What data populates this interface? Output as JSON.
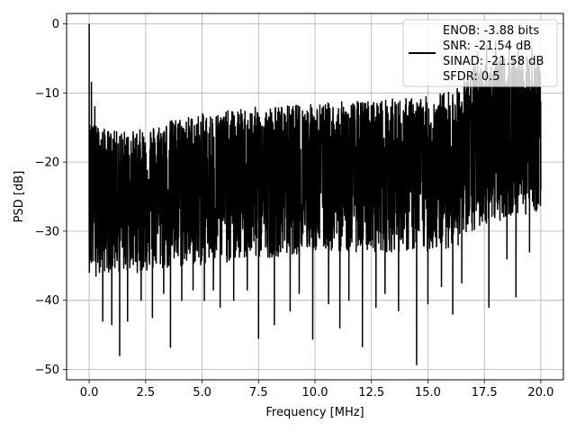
{
  "chart_data": {
    "type": "line",
    "title": "",
    "xlabel": "Frequency [MHz]",
    "ylabel": "PSD [dB]",
    "xlim": [
      -1.0,
      21.0
    ],
    "ylim": [
      -51.5,
      1.5
    ],
    "xticks": [
      0.0,
      2.5,
      5.0,
      7.5,
      10.0,
      12.5,
      15.0,
      17.5,
      20.0
    ],
    "xtick_labels": [
      "0.0",
      "2.5",
      "5.0",
      "7.5",
      "10.0",
      "12.5",
      "15.0",
      "17.5",
      "20.0"
    ],
    "yticks": [
      0,
      -10,
      -20,
      -30,
      -40,
      -50
    ],
    "ytick_labels": [
      "0",
      "−10",
      "−20",
      "−30",
      "−40",
      "−50"
    ],
    "grid": true,
    "legend_position": "top-right",
    "series_color": "#000000",
    "legend": {
      "lines": [
        "ENOB: -3.88 bits",
        "SNR: -21.54 dB",
        "SINAD: -21.58 dB",
        "SFDR: 0.5"
      ]
    },
    "series": [
      {
        "x_start": 0.0,
        "x_end": 20.0,
        "peak": {
          "x": 0.0,
          "y": 0.0
        },
        "band_mean": [
          [
            0.0,
            -22
          ],
          [
            1.0,
            -23
          ],
          [
            2.0,
            -23.5
          ],
          [
            3.0,
            -23
          ],
          [
            4.0,
            -22.5
          ],
          [
            5.0,
            -22.5
          ],
          [
            7.5,
            -22
          ],
          [
            10.0,
            -21.5
          ],
          [
            12.5,
            -21.5
          ],
          [
            15.0,
            -21
          ],
          [
            16.5,
            -20
          ],
          [
            17.0,
            -18
          ],
          [
            18.0,
            -16
          ],
          [
            19.0,
            -15
          ],
          [
            20.0,
            -15
          ]
        ],
        "upper_envelope": [
          [
            0.0,
            -14
          ],
          [
            0.5,
            -15
          ],
          [
            1.0,
            -15.5
          ],
          [
            2.0,
            -15.5
          ],
          [
            3.0,
            -14.5
          ],
          [
            4.0,
            -13.5
          ],
          [
            5.0,
            -13
          ],
          [
            7.5,
            -12
          ],
          [
            10.0,
            -11.5
          ],
          [
            12.5,
            -11
          ],
          [
            15.0,
            -10.5
          ],
          [
            16.5,
            -9
          ],
          [
            17.0,
            -6
          ],
          [
            18.0,
            -5
          ],
          [
            19.0,
            -4.5
          ],
          [
            20.0,
            -5
          ]
        ],
        "lower_envelope": [
          [
            0.0,
            -36
          ],
          [
            1.0,
            -36
          ],
          [
            2.5,
            -36
          ],
          [
            5.0,
            -35
          ],
          [
            7.5,
            -34
          ],
          [
            10.0,
            -33
          ],
          [
            12.5,
            -33
          ],
          [
            15.0,
            -33
          ],
          [
            16.5,
            -32
          ],
          [
            17.5,
            -29
          ],
          [
            20.0,
            -27
          ]
        ],
        "dips": [
          {
            "x": 0.3,
            "y": -36.5
          },
          {
            "x": 0.6,
            "y": -43.0
          },
          {
            "x": 1.0,
            "y": -43.5
          },
          {
            "x": 1.35,
            "y": -48.0
          },
          {
            "x": 1.7,
            "y": -43.0
          },
          {
            "x": 2.3,
            "y": -40.0
          },
          {
            "x": 2.8,
            "y": -42.5
          },
          {
            "x": 3.3,
            "y": -39.0
          },
          {
            "x": 3.6,
            "y": -46.8
          },
          {
            "x": 4.1,
            "y": -40.0
          },
          {
            "x": 4.6,
            "y": -38.5
          },
          {
            "x": 5.1,
            "y": -40.0
          },
          {
            "x": 5.5,
            "y": -38.5
          },
          {
            "x": 5.8,
            "y": -41.0
          },
          {
            "x": 6.4,
            "y": -40.0
          },
          {
            "x": 7.0,
            "y": -38.5
          },
          {
            "x": 7.5,
            "y": -45.5
          },
          {
            "x": 8.2,
            "y": -43.5
          },
          {
            "x": 8.9,
            "y": -41.5
          },
          {
            "x": 9.3,
            "y": -39.0
          },
          {
            "x": 9.9,
            "y": -45.6
          },
          {
            "x": 10.6,
            "y": -40.5
          },
          {
            "x": 11.1,
            "y": -44.0
          },
          {
            "x": 11.5,
            "y": -40.0
          },
          {
            "x": 12.1,
            "y": -46.7
          },
          {
            "x": 12.7,
            "y": -41.0
          },
          {
            "x": 13.1,
            "y": -39.0
          },
          {
            "x": 13.7,
            "y": -41.5
          },
          {
            "x": 14.5,
            "y": -49.3
          },
          {
            "x": 15.0,
            "y": -40.5
          },
          {
            "x": 15.6,
            "y": -38.0
          },
          {
            "x": 16.1,
            "y": -42.0
          },
          {
            "x": 16.5,
            "y": -37.5
          },
          {
            "x": 17.7,
            "y": -41.0
          },
          {
            "x": 18.5,
            "y": -34.0
          },
          {
            "x": 18.9,
            "y": -39.5
          },
          {
            "x": 19.5,
            "y": -33.0
          }
        ],
        "spikes": [
          {
            "x": 0.1,
            "y": -8.5
          },
          {
            "x": 0.25,
            "y": -12.0
          },
          {
            "x": 16.6,
            "y": -7.5
          },
          {
            "x": 17.2,
            "y": -4.0
          },
          {
            "x": 17.6,
            "y": -3.0
          },
          {
            "x": 18.0,
            "y": -2.5
          },
          {
            "x": 18.6,
            "y": -3.0
          },
          {
            "x": 19.0,
            "y": -4.0
          },
          {
            "x": 19.6,
            "y": -3.5
          }
        ]
      }
    ]
  }
}
